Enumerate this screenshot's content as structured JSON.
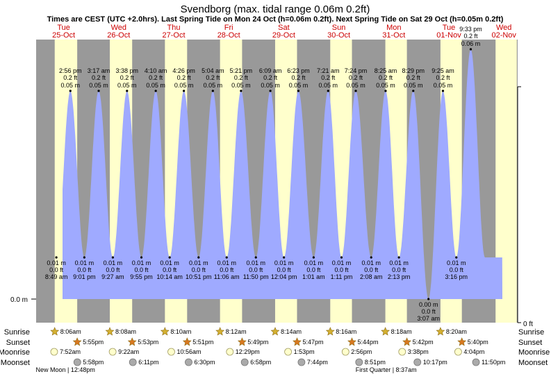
{
  "title": "Svendborg (max. tidal range 0.06m 0.2ft)",
  "subtitle": "Times are CEST (UTC +2.0hrs). Last Spring Tide on Mon 24 Oct (h=0.06m 0.2ft). Next Spring Tide on Sat 29 Oct (h=0.05m 0.2ft)",
  "colors": {
    "night": "#999999",
    "day": "#ffffcc",
    "water": "#9faaff",
    "day_label": "#cc0000",
    "sunrise_star": "#d4b030",
    "sunset_star": "#d87820",
    "moonrise": "#ffffcc",
    "moonset": "#aaaaaa"
  },
  "days": [
    {
      "dow": "Tue",
      "date": "25-Oct"
    },
    {
      "dow": "Wed",
      "date": "26-Oct"
    },
    {
      "dow": "Thu",
      "date": "27-Oct"
    },
    {
      "dow": "Fri",
      "date": "28-Oct"
    },
    {
      "dow": "Sat",
      "date": "29-Oct"
    },
    {
      "dow": "Sun",
      "date": "30-Oct"
    },
    {
      "dow": "Mon",
      "date": "31-Oct"
    },
    {
      "dow": "Tue",
      "date": "01-Nov"
    },
    {
      "dow": "Wed",
      "date": "02-Nov"
    }
  ],
  "axis": {
    "left_label": "0.0 m",
    "right_label": "0 ft"
  },
  "row_labels": {
    "sunrise": "Sunrise",
    "sunset": "Sunset",
    "moonrise": "Moonrise",
    "moonset": "Moonset"
  },
  "astro": {
    "sunrise": [
      "8:06am",
      "8:08am",
      "8:10am",
      "8:12am",
      "8:14am",
      "8:16am",
      "8:18am",
      "8:20am"
    ],
    "sunset": [
      "5:55pm",
      "5:53pm",
      "5:51pm",
      "5:49pm",
      "5:47pm",
      "5:44pm",
      "5:42pm",
      "5:40pm"
    ],
    "moonrise": [
      "7:52am",
      "9:22am",
      "10:56am",
      "12:29pm",
      "1:53pm",
      "2:56pm",
      "3:38pm",
      "4:04pm"
    ],
    "moonset": [
      "5:58pm",
      "6:11pm",
      "6:30pm",
      "6:58pm",
      "7:44pm",
      "8:51pm",
      "10:17pm",
      "11:50pm"
    ]
  },
  "moon_phases": [
    {
      "label": "New Moon | 12:48pm"
    },
    {
      "label": "First Quarter | 8:37am"
    }
  ],
  "chart_data": {
    "type": "area",
    "title": "Svendborg (max. tidal range 0.06m 0.2ft)",
    "ylim_m": [
      0,
      0.06
    ],
    "x_unit": "hours since Tue 25-Oct 00:00 (CEST)",
    "highs": [
      {
        "time": "2:56 pm",
        "ft": "0.2 ft",
        "m": "0.05 m",
        "h": 14.93,
        "v": 0.05
      },
      {
        "time": "3:17 am",
        "ft": "0.2 ft",
        "m": "0.05 m",
        "h": 27.28,
        "v": 0.05
      },
      {
        "time": "3:38 pm",
        "ft": "0.2 ft",
        "m": "0.05 m",
        "h": 39.63,
        "v": 0.05
      },
      {
        "time": "4:10 am",
        "ft": "0.2 ft",
        "m": "0.05 m",
        "h": 52.17,
        "v": 0.05
      },
      {
        "time": "4:26 pm",
        "ft": "0.2 ft",
        "m": "0.05 m",
        "h": 64.43,
        "v": 0.05
      },
      {
        "time": "5:04 am",
        "ft": "0.2 ft",
        "m": "0.05 m",
        "h": 77.07,
        "v": 0.05
      },
      {
        "time": "5:21 pm",
        "ft": "0.2 ft",
        "m": "0.05 m",
        "h": 89.35,
        "v": 0.05
      },
      {
        "time": "6:09 am",
        "ft": "0.2 ft",
        "m": "0.05 m",
        "h": 102.15,
        "v": 0.05
      },
      {
        "time": "6:23 pm",
        "ft": "0.2 ft",
        "m": "0.05 m",
        "h": 114.38,
        "v": 0.05
      },
      {
        "time": "7:21 am",
        "ft": "0.2 ft",
        "m": "0.05 m",
        "h": 127.35,
        "v": 0.05
      },
      {
        "time": "7:24 pm",
        "ft": "0.2 ft",
        "m": "0.05 m",
        "h": 139.4,
        "v": 0.05
      },
      {
        "time": "8:25 am",
        "ft": "0.2 ft",
        "m": "0.05 m",
        "h": 152.42,
        "v": 0.05
      },
      {
        "time": "8:29 pm",
        "ft": "0.2 ft",
        "m": "0.05 m",
        "h": 164.48,
        "v": 0.05
      },
      {
        "time": "9:25 am",
        "ft": "0.2 ft",
        "m": "0.05 m",
        "h": 177.42,
        "v": 0.05
      },
      {
        "time": "9:33 pm",
        "ft": "0.2 ft",
        "m": "0.06 m",
        "h": 189.55,
        "v": 0.06
      }
    ],
    "lows": [
      {
        "time": "8:49 am",
        "ft": "0.0 ft",
        "m": "0.01 m",
        "h": 8.82,
        "v": 0.01
      },
      {
        "time": "9:01 pm",
        "ft": "0.0 ft",
        "m": "0.01 m",
        "h": 21.02,
        "v": 0.01
      },
      {
        "time": "9:27 am",
        "ft": "0.0 ft",
        "m": "0.01 m",
        "h": 33.45,
        "v": 0.01
      },
      {
        "time": "9:55 pm",
        "ft": "0.0 ft",
        "m": "0.01 m",
        "h": 45.92,
        "v": 0.01
      },
      {
        "time": "10:14 am",
        "ft": "0.0 ft",
        "m": "0.01 m",
        "h": 58.23,
        "v": 0.01
      },
      {
        "time": "10:51 pm",
        "ft": "0.0 ft",
        "m": "0.01 m",
        "h": 70.85,
        "v": 0.01
      },
      {
        "time": "11:06 am",
        "ft": "0.0 ft",
        "m": "0.01 m",
        "h": 83.1,
        "v": 0.01
      },
      {
        "time": "11:50 pm",
        "ft": "0.0 ft",
        "m": "0.01 m",
        "h": 95.83,
        "v": 0.01
      },
      {
        "time": "12:04 pm",
        "ft": "0.0 ft",
        "m": "0.01 m",
        "h": 108.07,
        "v": 0.01
      },
      {
        "time": "1:01 am",
        "ft": "0.0 ft",
        "m": "0.01 m",
        "h": 121.02,
        "v": 0.01
      },
      {
        "time": "1:11 pm",
        "ft": "0.0 ft",
        "m": "0.01 m",
        "h": 133.18,
        "v": 0.01
      },
      {
        "time": "2:08 am",
        "ft": "0.0 ft",
        "m": "0.01 m",
        "h": 146.13,
        "v": 0.01
      },
      {
        "time": "2:13 pm",
        "ft": "0.0 ft",
        "m": "0.01 m",
        "h": 158.22,
        "v": 0.01
      },
      {
        "time": "3:07 am",
        "ft": "0.0 ft",
        "m": "0.00 m",
        "h": 171.12,
        "v": 0.0
      },
      {
        "time": "3:16 pm",
        "ft": "0.0 ft",
        "m": "0.01 m",
        "h": 183.27,
        "v": 0.01
      }
    ]
  }
}
